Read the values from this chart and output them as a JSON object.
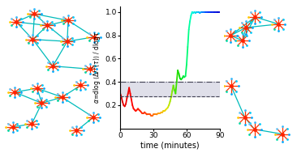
{
  "xlabel": "time (minutes)",
  "xlim": [
    0,
    90
  ],
  "ylim": [
    0.0,
    1.05
  ],
  "xticks": [
    0,
    30,
    60,
    90
  ],
  "yticks": [
    0.2,
    0.4,
    0.6,
    0.8,
    1.0
  ],
  "hline_upper": 0.4,
  "hline_lower": 0.275,
  "shade_color": "#b8b8d0",
  "shade_alpha": 0.45,
  "box_colors": {
    "top_left": "#ee1111",
    "bottom_left": "#eecc00",
    "top_right": "#22dd00",
    "bottom_right": "#00aaff"
  },
  "time_data": [
    0,
    1,
    2,
    3,
    4,
    5,
    6,
    7,
    8,
    9,
    10,
    11,
    12,
    13,
    14,
    15,
    16,
    17,
    18,
    19,
    20,
    21,
    22,
    23,
    24,
    25,
    26,
    27,
    28,
    29,
    30,
    31,
    32,
    33,
    34,
    35,
    36,
    37,
    38,
    39,
    40,
    41,
    42,
    43,
    44,
    45,
    46,
    47,
    48,
    49,
    50,
    51,
    52,
    53,
    54,
    55,
    56,
    57,
    58,
    59,
    60,
    61,
    62,
    63,
    64,
    65,
    66,
    67,
    68,
    69,
    70,
    71,
    72,
    73,
    74,
    75,
    76,
    77,
    78,
    79,
    80,
    81,
    82,
    83,
    84,
    85,
    86,
    87,
    88,
    89,
    90
  ],
  "alpha_data": [
    0.3,
    0.27,
    0.23,
    0.2,
    0.19,
    0.21,
    0.26,
    0.3,
    0.35,
    0.3,
    0.25,
    0.2,
    0.17,
    0.16,
    0.15,
    0.16,
    0.17,
    0.16,
    0.15,
    0.14,
    0.13,
    0.13,
    0.14,
    0.13,
    0.12,
    0.12,
    0.12,
    0.12,
    0.11,
    0.11,
    0.12,
    0.12,
    0.12,
    0.12,
    0.13,
    0.13,
    0.13,
    0.14,
    0.14,
    0.15,
    0.15,
    0.16,
    0.17,
    0.18,
    0.2,
    0.23,
    0.27,
    0.32,
    0.37,
    0.33,
    0.3,
    0.4,
    0.5,
    0.47,
    0.43,
    0.42,
    0.43,
    0.45,
    0.44,
    0.45,
    0.55,
    0.7,
    0.85,
    0.92,
    0.97,
    1.0,
    0.99,
    1.0,
    0.99,
    1.0,
    1.0,
    1.0,
    0.99,
    1.0,
    1.0,
    1.0,
    1.0,
    1.0,
    1.0,
    1.0,
    1.0,
    1.0,
    1.0,
    1.0,
    1.0,
    1.0,
    1.0,
    1.0,
    1.0,
    1.0,
    1.0
  ]
}
